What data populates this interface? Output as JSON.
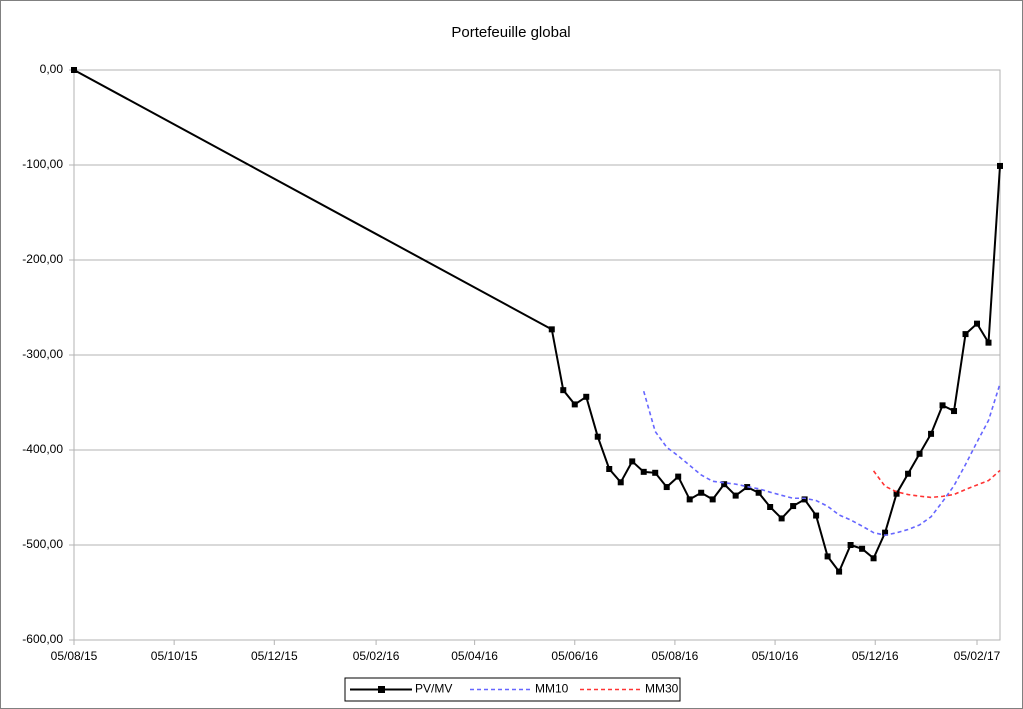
{
  "chart_data": {
    "type": "line",
    "title": "Portefeuille global",
    "x": [
      "05/08/15",
      "22/05/16",
      "29/05/16",
      "05/06/16",
      "12/06/16",
      "19/06/16",
      "26/06/16",
      "03/07/16",
      "10/07/16",
      "17/07/16",
      "24/07/16",
      "31/07/16",
      "07/08/16",
      "14/08/16",
      "21/08/16",
      "28/08/16",
      "04/09/16",
      "11/09/16",
      "18/09/16",
      "25/09/16",
      "02/10/16",
      "09/10/16",
      "16/10/16",
      "23/10/16",
      "30/10/16",
      "06/11/16",
      "13/11/16",
      "20/11/16",
      "27/11/16",
      "04/12/16",
      "11/12/16",
      "18/12/16",
      "25/12/16",
      "01/01/17",
      "08/01/17",
      "15/01/17",
      "22/01/17",
      "29/01/17",
      "05/02/17",
      "12/02/17",
      "19/02/17"
    ],
    "series": [
      {
        "name": "PV/MV",
        "color": "#000000",
        "marker": "square",
        "dashed": false,
        "values": [
          0,
          -273,
          -337,
          -352,
          -344,
          -386,
          -420,
          -434,
          -412,
          -423,
          -424,
          -439,
          -428,
          -452,
          -445,
          -452,
          -436,
          -448,
          -439,
          -445,
          -460,
          -472,
          -459,
          -452,
          -469,
          -512,
          -528,
          -500,
          -504,
          -514,
          -487,
          -446,
          -425,
          -404,
          -383,
          -353,
          -359,
          -278,
          -267,
          -287,
          -101
        ]
      },
      {
        "name": "MM10",
        "color": "#6666ff",
        "marker": null,
        "dashed": true,
        "values": [
          null,
          null,
          null,
          null,
          null,
          null,
          null,
          null,
          null,
          -338.1,
          -380.5,
          -397.1,
          -406.2,
          -416.2,
          -426.3,
          -432.9,
          -434.5,
          -435.9,
          -438.6,
          -440.8,
          -444.4,
          -447.7,
          -450.8,
          -450.8,
          -453.2,
          -459.2,
          -468.4,
          -473.6,
          -480.1,
          -487.0,
          -489.7,
          -487.1,
          -483.7,
          -478.9,
          -470.3,
          -454.4,
          -437.5,
          -415.3,
          -391.6,
          -368.9,
          -330.3
        ]
      },
      {
        "name": "MM30",
        "color": "#ff3333",
        "marker": null,
        "dashed": true,
        "values": [
          null,
          null,
          null,
          null,
          null,
          null,
          null,
          null,
          null,
          null,
          null,
          null,
          null,
          null,
          null,
          null,
          null,
          null,
          null,
          null,
          null,
          null,
          null,
          null,
          null,
          null,
          null,
          null,
          null,
          -422.0,
          -438.2,
          -444.0,
          -446.9,
          -448.6,
          -449.9,
          -448.8,
          -446.8,
          -441.6,
          -436.8,
          -432.2,
          -421.5
        ]
      }
    ],
    "xlim": [
      "05/08/15",
      "19/02/17"
    ],
    "xticks": [
      "05/08/15",
      "05/10/15",
      "05/12/15",
      "05/02/16",
      "05/04/16",
      "05/06/16",
      "05/08/16",
      "05/10/16",
      "05/12/16",
      "05/02/17"
    ],
    "ylim": [
      -600,
      0
    ],
    "yticks": [
      {
        "value": 0,
        "label": "0,00"
      },
      {
        "value": -100,
        "label": "-100,00"
      },
      {
        "value": -200,
        "label": "-200,00"
      },
      {
        "value": -300,
        "label": "-300,00"
      },
      {
        "value": -400,
        "label": "-400,00"
      },
      {
        "value": -500,
        "label": "-500,00"
      },
      {
        "value": -600,
        "label": "-600,00"
      }
    ],
    "grid": true,
    "legend": "bottom"
  }
}
